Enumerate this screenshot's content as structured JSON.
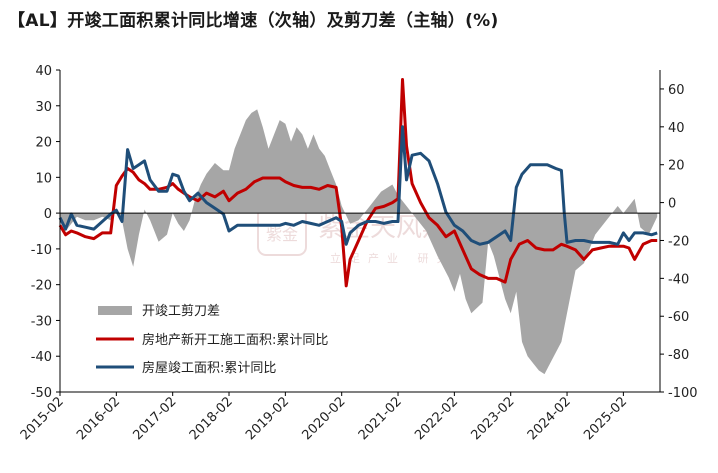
{
  "title": "【AL】开竣工面积累计同比增速（次轴）及剪刀差（主轴）(%)",
  "watermark": {
    "brand": "紫金天风期货",
    "sub": "立足产业 研究",
    "logo_text": "紫金"
  },
  "chart_data": {
    "type": "area+line",
    "title": "【AL】开竣工面积累计同比增速（次轴）及剪刀差（主轴）(%)",
    "x_tick_labels": [
      "2015-02",
      "2016-02",
      "2017-02",
      "2018-02",
      "2019-02",
      "2020-02",
      "2021-02",
      "2022-02",
      "2023-02",
      "2024-02",
      "2025-02"
    ],
    "x_range": [
      2015.0,
      2025.65
    ],
    "left_axis": {
      "ylim": [
        -50,
        40
      ],
      "ticks": [
        40,
        30,
        20,
        10,
        0,
        -10,
        -20,
        -30,
        -40,
        -50
      ]
    },
    "right_axis": {
      "ylim": [
        -100,
        70
      ],
      "ticks": [
        60,
        40,
        20,
        0,
        -20,
        -40,
        -60,
        -80,
        -100
      ]
    },
    "colors": {
      "scissors": "#a6a6a6",
      "new_starts": "#c00000",
      "completed": "#1f4e79"
    },
    "series": [
      {
        "name": "开竣工剪刀差",
        "type": "area",
        "axis": "left",
        "x": [
          2015.0,
          2015.1,
          2015.2,
          2015.3,
          2015.45,
          2015.6,
          2015.75,
          2015.9,
          2016.0,
          2016.1,
          2016.2,
          2016.3,
          2016.4,
          2016.5,
          2016.6,
          2016.75,
          2016.9,
          2017.0,
          2017.1,
          2017.2,
          2017.3,
          2017.4,
          2017.5,
          2017.6,
          2017.75,
          2017.9,
          2018.0,
          2018.1,
          2018.2,
          2018.3,
          2018.4,
          2018.5,
          2018.6,
          2018.7,
          2018.8,
          2018.9,
          2019.0,
          2019.1,
          2019.2,
          2019.3,
          2019.4,
          2019.5,
          2019.6,
          2019.7,
          2019.8,
          2019.9,
          2020.0,
          2020.15,
          2020.3,
          2020.5,
          2020.7,
          2020.9,
          2021.0,
          2021.15,
          2021.3,
          2021.5,
          2021.7,
          2021.9,
          2022.0,
          2022.1,
          2022.2,
          2022.3,
          2022.5,
          2022.6,
          2022.7,
          2022.9,
          2023.0,
          2023.1,
          2023.2,
          2023.3,
          2023.4,
          2023.5,
          2023.6,
          2023.7,
          2023.9,
          2024.0,
          2024.15,
          2024.3,
          2024.5,
          2024.7,
          2024.9,
          2025.0,
          2025.1,
          2025.2,
          2025.3,
          2025.45,
          2025.6
        ],
        "values": [
          -2,
          -5,
          -3,
          -1,
          -2,
          -2,
          -1,
          -2,
          1,
          -2,
          -10,
          -15,
          -6,
          1,
          -2,
          -8,
          -6,
          0,
          -3,
          -5,
          -2,
          4,
          8,
          11,
          14,
          12,
          12,
          18,
          22,
          26,
          28,
          29,
          24,
          18,
          22,
          26,
          25,
          20,
          24,
          22,
          18,
          22,
          18,
          16,
          12,
          8,
          2,
          -3,
          -2,
          2,
          6,
          8,
          5,
          2,
          -1,
          -5,
          -12,
          -18,
          -22,
          -17,
          -24,
          -28,
          -25,
          -8,
          -12,
          -24,
          -28,
          -22,
          -36,
          -40,
          -42,
          -44,
          -45,
          -42,
          -36,
          -28,
          -16,
          -14,
          -6,
          -2,
          2,
          0,
          2,
          4,
          -4,
          -6,
          -1
        ]
      },
      {
        "name": "房地产新开工施工面积:累计同比",
        "type": "line",
        "axis": "right",
        "x": [
          2015.0,
          2015.1,
          2015.2,
          2015.3,
          2015.45,
          2015.6,
          2015.75,
          2015.9,
          2016.0,
          2016.1,
          2016.2,
          2016.3,
          2016.4,
          2016.5,
          2016.6,
          2016.75,
          2016.9,
          2017.0,
          2017.1,
          2017.2,
          2017.3,
          2017.45,
          2017.6,
          2017.75,
          2017.9,
          2018.0,
          2018.15,
          2018.3,
          2018.45,
          2018.6,
          2018.75,
          2018.9,
          2019.0,
          2019.15,
          2019.3,
          2019.45,
          2019.6,
          2019.75,
          2019.9,
          2020.0,
          2020.08,
          2020.15,
          2020.3,
          2020.45,
          2020.6,
          2020.75,
          2020.9,
          2021.0,
          2021.08,
          2021.15,
          2021.25,
          2021.4,
          2021.55,
          2021.7,
          2021.85,
          2022.0,
          2022.15,
          2022.3,
          2022.45,
          2022.6,
          2022.75,
          2022.9,
          2023.0,
          2023.15,
          2023.3,
          2023.45,
          2023.6,
          2023.75,
          2023.9,
          2024.0,
          2024.15,
          2024.3,
          2024.45,
          2024.6,
          2024.75,
          2024.9,
          2025.0,
          2025.1,
          2025.2,
          2025.35,
          2025.5,
          2025.6
        ],
        "values": [
          -12,
          -17,
          -15,
          -16,
          -18,
          -19,
          -16,
          -16,
          9,
          14,
          18,
          16,
          12,
          10,
          7,
          7,
          8,
          10,
          7,
          5,
          3,
          1,
          5,
          3,
          6,
          1,
          5,
          7,
          11,
          13,
          13,
          13,
          11,
          9,
          8,
          8,
          7,
          9,
          8,
          -13,
          -44,
          -30,
          -20,
          -10,
          -3,
          -2,
          0,
          2,
          65,
          30,
          10,
          0,
          -8,
          -12,
          -18,
          -15,
          -25,
          -35,
          -38,
          -40,
          -40,
          -42,
          -30,
          -22,
          -20,
          -24,
          -25,
          -25,
          -22,
          -23,
          -25,
          -30,
          -25,
          -24,
          -23,
          -23,
          -23,
          -24,
          -30,
          -22,
          -20,
          -20
        ]
      },
      {
        "name": "房屋竣工面积:累计同比",
        "type": "line",
        "axis": "right",
        "x": [
          2015.0,
          2015.1,
          2015.2,
          2015.3,
          2015.45,
          2015.6,
          2015.75,
          2015.9,
          2016.0,
          2016.1,
          2016.2,
          2016.3,
          2016.4,
          2016.5,
          2016.6,
          2016.75,
          2016.9,
          2017.0,
          2017.1,
          2017.2,
          2017.3,
          2017.45,
          2017.6,
          2017.75,
          2017.9,
          2018.0,
          2018.15,
          2018.3,
          2018.45,
          2018.6,
          2018.75,
          2018.9,
          2019.0,
          2019.15,
          2019.3,
          2019.45,
          2019.6,
          2019.75,
          2019.9,
          2020.0,
          2020.08,
          2020.15,
          2020.3,
          2020.45,
          2020.6,
          2020.75,
          2020.9,
          2021.0,
          2021.08,
          2021.15,
          2021.25,
          2021.4,
          2021.55,
          2021.7,
          2021.85,
          2022.0,
          2022.15,
          2022.3,
          2022.45,
          2022.6,
          2022.75,
          2022.9,
          2023.0,
          2023.1,
          2023.2,
          2023.35,
          2023.5,
          2023.65,
          2023.8,
          2023.9,
          2023.95,
          2024.0,
          2024.15,
          2024.3,
          2024.45,
          2024.6,
          2024.75,
          2024.9,
          2025.0,
          2025.1,
          2025.2,
          2025.35,
          2025.5,
          2025.6
        ],
        "values": [
          -8,
          -14,
          -6,
          -12,
          -13,
          -14,
          -10,
          -6,
          -4,
          -10,
          28,
          18,
          20,
          22,
          12,
          6,
          6,
          15,
          14,
          6,
          1,
          5,
          0,
          -3,
          -6,
          -15,
          -12,
          -12,
          -12,
          -12,
          -12,
          -12,
          -11,
          -12,
          -10,
          -11,
          -12,
          -10,
          -8,
          -10,
          -22,
          -16,
          -12,
          -10,
          -10,
          -11,
          -10,
          -10,
          40,
          12,
          25,
          26,
          22,
          10,
          -5,
          -12,
          -15,
          -20,
          -22,
          -21,
          -18,
          -15,
          -20,
          8,
          15,
          20,
          20,
          20,
          18,
          17,
          -5,
          -21,
          -20,
          -20,
          -21,
          -21,
          -21,
          -22,
          -16,
          -20,
          -16,
          -16,
          -17,
          -16
        ]
      }
    ],
    "legend": {
      "placement": "lower-left",
      "entries": [
        "开竣工剪刀差",
        "房地产新开工施工面积:累计同比",
        "房屋竣工面积:累计同比"
      ]
    }
  }
}
